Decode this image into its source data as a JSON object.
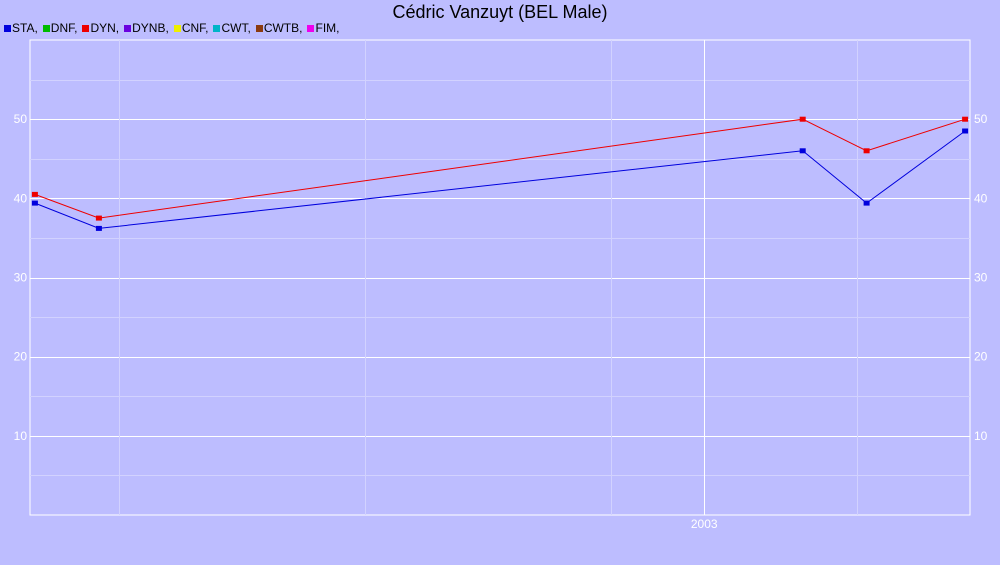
{
  "chart_data": {
    "type": "line",
    "title": "Cédric Vanzuyt (BEL Male)",
    "legend_position": "top-left",
    "legend": [
      {
        "label": "STA,",
        "color": "#0000dd"
      },
      {
        "label": "DNF,",
        "color": "#00bb00"
      },
      {
        "label": "DYN,",
        "color": "#ee0000"
      },
      {
        "label": "DYNB,",
        "color": "#6a00e0"
      },
      {
        "label": "CNF,",
        "color": "#eeee00"
      },
      {
        "label": "CWT,",
        "color": "#00b4c8"
      },
      {
        "label": "CWTB,",
        "color": "#8b3a10"
      },
      {
        "label": "FIM,",
        "color": "#ee00ee"
      }
    ],
    "grid": true,
    "xlim": [
      2001.63,
      2003.54
    ],
    "ylim": [
      0,
      60
    ],
    "x_ticks": [
      2003
    ],
    "y_ticks": [
      10,
      20,
      30,
      40,
      50
    ],
    "series": [
      {
        "color": "#0000dd",
        "x": [
          2001.64,
          2001.77,
          2003.2,
          2003.33,
          2003.53
        ],
        "y": [
          39.4,
          36.2,
          46.0,
          39.4,
          48.5
        ]
      },
      {
        "color": "#ee0000",
        "x": [
          2001.64,
          2001.77,
          2003.2,
          2003.33,
          2003.53
        ],
        "y": [
          40.5,
          37.5,
          50.0,
          46.0,
          50.0
        ]
      }
    ]
  }
}
